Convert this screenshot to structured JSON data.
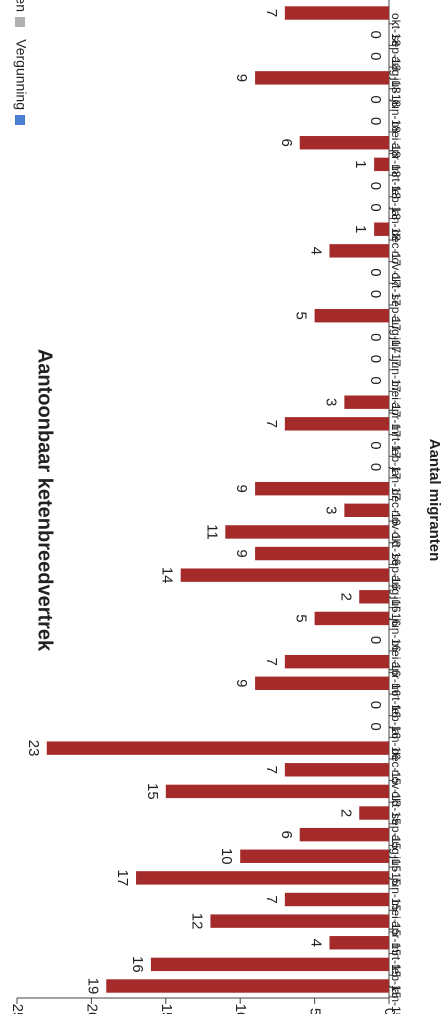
{
  "chart_data": {
    "type": "bar",
    "title": "Aantoonbaar ketenbreedvertrek",
    "ylabel": "Aantal migranten",
    "xlabel": "",
    "ylim": [
      0,
      25
    ],
    "y_ticks": [
      "0",
      "5",
      "10",
      "15",
      "20",
      "25"
    ],
    "orientation": "rotated-90-clockwise",
    "categories": [
      "jan-15",
      "feb-15",
      "mrt-15",
      "apr-15",
      "mei-15",
      "jun-15",
      "jul-15",
      "aug-15",
      "sep-15",
      "okt-15",
      "nov-15",
      "dec-15",
      "jan-16",
      "feb-16",
      "mrt-16",
      "apr-16",
      "mei-16",
      "jun-16",
      "jul-16",
      "aug-16",
      "sep-16",
      "okt-16",
      "nov-16",
      "dec-16",
      "jan-17",
      "feb-17",
      "mrt-17",
      "apr-17",
      "mei-17",
      "jun-17",
      "jul-17",
      "aug-17",
      "sep-17",
      "okt-17",
      "nov-17",
      "dec-17",
      "jan-18",
      "feb-18",
      "mrt-18",
      "apr-18",
      "mei-18",
      "jun-18",
      "jul-18",
      "aug-18",
      "sep-18",
      "okt-18"
    ],
    "values": [
      19,
      16,
      4,
      12,
      7,
      17,
      10,
      6,
      2,
      15,
      7,
      23,
      0,
      0,
      9,
      7,
      0,
      5,
      2,
      14,
      9,
      11,
      3,
      9,
      0,
      0,
      7,
      3,
      0,
      0,
      0,
      5,
      0,
      0,
      4,
      1,
      0,
      0,
      1,
      6,
      0,
      0,
      9,
      0,
      0,
      7
    ],
    "bar_color": "#a52a2a",
    "legend": {
      "placement": "top-right",
      "items": [
        {
          "label": "Vergunning",
          "color": "#4a7fd1"
        },
        {
          "label": "Lopen",
          "color": "#b0b0b0"
        }
      ]
    },
    "grid": false
  }
}
